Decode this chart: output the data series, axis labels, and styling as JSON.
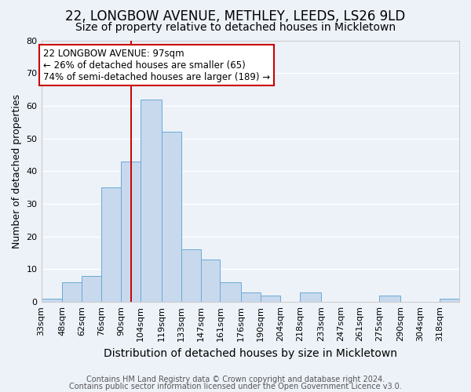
{
  "title": "22, LONGBOW AVENUE, METHLEY, LEEDS, LS26 9LD",
  "subtitle": "Size of property relative to detached houses in Mickletown",
  "xlabel": "Distribution of detached houses by size in Mickletown",
  "ylabel": "Number of detached properties",
  "bin_labels": [
    "33sqm",
    "48sqm",
    "62sqm",
    "76sqm",
    "90sqm",
    "104sqm",
    "119sqm",
    "133sqm",
    "147sqm",
    "161sqm",
    "176sqm",
    "190sqm",
    "204sqm",
    "218sqm",
    "233sqm",
    "247sqm",
    "261sqm",
    "275sqm",
    "290sqm",
    "304sqm",
    "318sqm"
  ],
  "bar_values": [
    1,
    6,
    8,
    35,
    43,
    62,
    52,
    16,
    13,
    6,
    3,
    2,
    0,
    3,
    0,
    0,
    0,
    2,
    0,
    0,
    1
  ],
  "bar_color": "#c8d9ee",
  "bar_edge_color": "#6aaad4",
  "vline_x": 97,
  "vline_color": "#cc0000",
  "bin_edges": [
    33,
    48,
    62,
    76,
    90,
    104,
    119,
    133,
    147,
    161,
    176,
    190,
    204,
    218,
    233,
    247,
    261,
    275,
    290,
    304,
    318,
    332
  ],
  "ylim": [
    0,
    80
  ],
  "yticks": [
    0,
    10,
    20,
    30,
    40,
    50,
    60,
    70,
    80
  ],
  "annotation_line1": "22 LONGBOW AVENUE: 97sqm",
  "annotation_line2": "← 26% of detached houses are smaller (65)",
  "annotation_line3": "74% of semi-detached houses are larger (189) →",
  "annotation_box_color": "#ffffff",
  "annotation_box_edge": "#cc0000",
  "footer1": "Contains HM Land Registry data © Crown copyright and database right 2024.",
  "footer2": "Contains public sector information licensed under the Open Government Licence v3.0.",
  "bg_color": "#edf2f9",
  "grid_color": "#ffffff",
  "title_fontsize": 12,
  "subtitle_fontsize": 10,
  "xlabel_fontsize": 10,
  "ylabel_fontsize": 9,
  "tick_fontsize": 8,
  "annotation_fontsize": 8.5,
  "footer_fontsize": 7
}
